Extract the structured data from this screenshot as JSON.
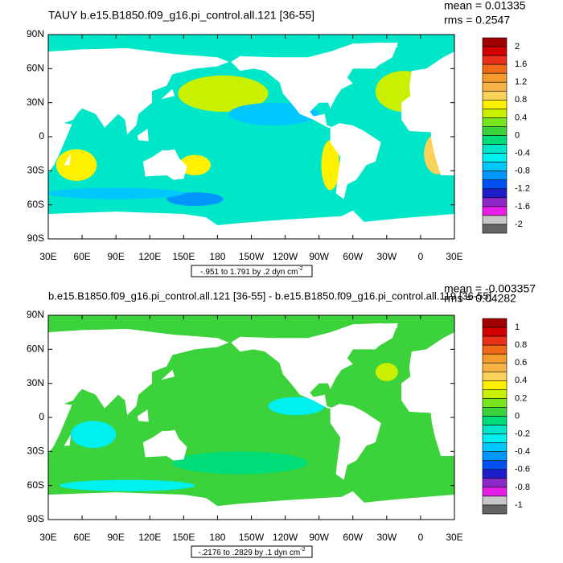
{
  "panels": [
    {
      "title": "TAUY b.e15.B1850.f09_g16.pi_control.all.121 [36-55]",
      "mean": "mean = 0.01335",
      "rms": "rms = 0.2547",
      "range_label": "-.951 to 1.791 by .2 dyn cm",
      "range_exponent": "-2",
      "colorbar_labels": [
        2,
        1.6,
        1.2,
        0.8,
        0.4,
        0,
        -0.4,
        -0.8,
        -1.2,
        -1.6,
        -2
      ]
    },
    {
      "title": "b.e15.B1850.f09_g16.pi_control.all.121 [36-55] - b.e15.B1850.f09_g16.pi_control.all.119 [36-55]",
      "mean": "mean = -0.003357",
      "rms": "rms = 0.04282",
      "range_label": "-.2176 to .2829 by .1 dyn cm",
      "range_exponent": "-2",
      "colorbar_labels": [
        1,
        0.8,
        0.6,
        0.4,
        0.2,
        0,
        -0.2,
        -0.4,
        -0.6,
        -0.8,
        -1
      ]
    }
  ],
  "lat_labels": [
    "90N",
    "60N",
    "30N",
    "0",
    "30S",
    "60S",
    "90S"
  ],
  "lon_labels": [
    "30E",
    "60E",
    "90E",
    "120E",
    "150E",
    "180",
    "150W",
    "120W",
    "90W",
    "60W",
    "30W",
    "0",
    "30E"
  ],
  "colorbar_colors": [
    "#a00000",
    "#d20000",
    "#e8301a",
    "#f06a1a",
    "#f59b2d",
    "#f7b445",
    "#fad25a",
    "#fff000",
    "#c8f000",
    "#78e61e",
    "#3cd23c",
    "#00dc78",
    "#00e6c8",
    "#00f0f0",
    "#00c8ff",
    "#0096ff",
    "#0050f0",
    "#1e1ec8",
    "#8c28c8",
    "#e61ee6",
    "#c8c8c8",
    "#646464"
  ]
}
